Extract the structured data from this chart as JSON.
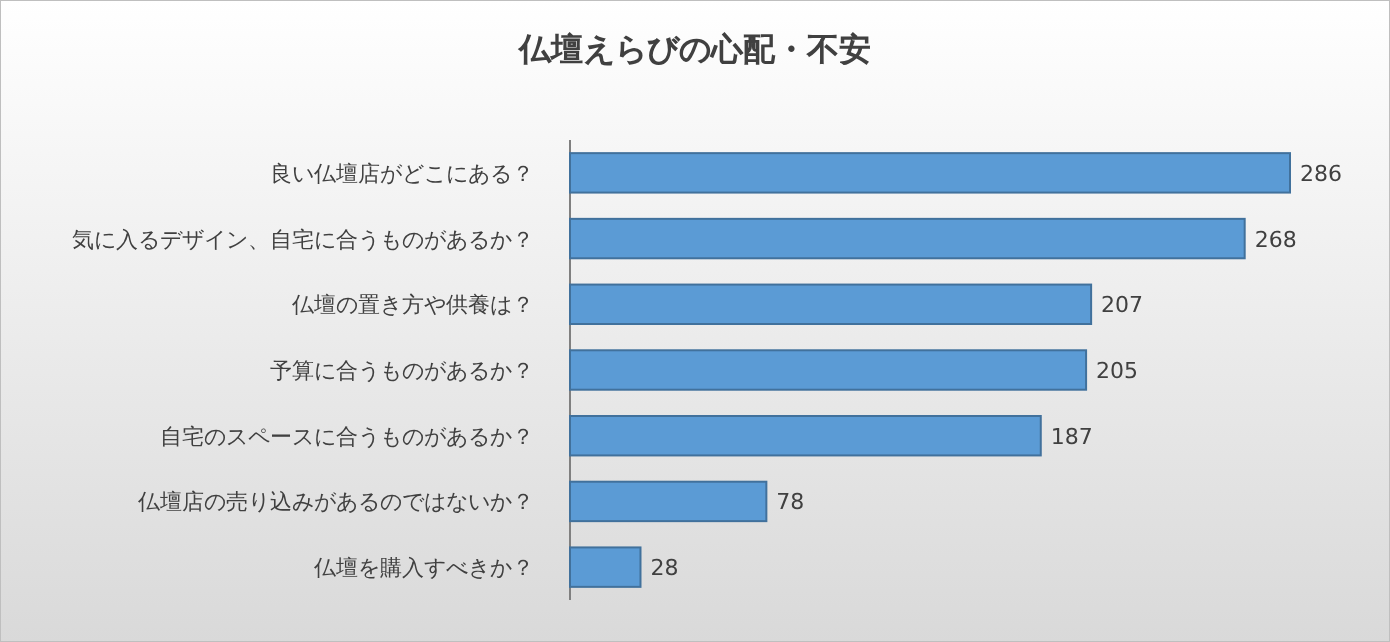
{
  "chart_data": {
    "type": "bar",
    "orientation": "horizontal",
    "title": "仏壇えらびの心配・不安",
    "categories": [
      "良い仏壇店がどこにある？",
      "気に入るデザイン、自宅に合うものがあるか？",
      "仏壇の置き方や供養は？",
      "予算に合うものがあるか？",
      "自宅のスペースに合うものがあるか？",
      "仏壇店の売り込みがあるのではないか？",
      "仏壇を購入すべきか？"
    ],
    "values": [
      286,
      268,
      207,
      205,
      187,
      78,
      28
    ],
    "color": "#5b9bd5",
    "data_labels": true
  }
}
